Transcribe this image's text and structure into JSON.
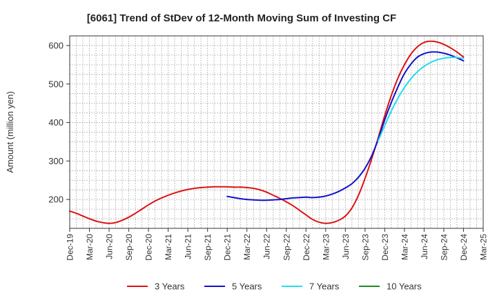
{
  "chart_data": {
    "type": "line",
    "title": "[6061]  Trend of StDev of 12-Month Moving Sum of Investing CF",
    "xlabel": "",
    "ylabel": "Amount (million yen)",
    "x_ticks": [
      "Dec-19",
      "Mar-20",
      "Jun-20",
      "Sep-20",
      "Dec-20",
      "Mar-21",
      "Jun-21",
      "Sep-21",
      "Dec-21",
      "Mar-22",
      "Jun-22",
      "Sep-22",
      "Dec-22",
      "Mar-23",
      "Jun-23",
      "Sep-23",
      "Dec-23",
      "Mar-24",
      "Jun-24",
      "Sep-24",
      "Dec-24",
      "Mar-25"
    ],
    "y_ticks": [
      200,
      300,
      400,
      500,
      600
    ],
    "ylim": [
      125,
      625
    ],
    "grid": true,
    "legend_position": "bottom",
    "series": [
      {
        "name": "3 Years",
        "color": "#dd1111",
        "points": [
          [
            "Dec-19",
            170
          ],
          [
            "Jan-20",
            164
          ],
          [
            "Feb-20",
            157
          ],
          [
            "Mar-20",
            150
          ],
          [
            "Apr-20",
            144
          ],
          [
            "May-20",
            140
          ],
          [
            "Jun-20",
            138
          ],
          [
            "Jul-20",
            140
          ],
          [
            "Aug-20",
            146
          ],
          [
            "Sep-20",
            154
          ],
          [
            "Oct-20",
            164
          ],
          [
            "Nov-20",
            175
          ],
          [
            "Dec-20",
            186
          ],
          [
            "Jan-21",
            196
          ],
          [
            "Feb-21",
            204
          ],
          [
            "Mar-21",
            211
          ],
          [
            "Apr-21",
            217
          ],
          [
            "May-21",
            222
          ],
          [
            "Jun-21",
            226
          ],
          [
            "Jul-21",
            229
          ],
          [
            "Aug-21",
            231
          ],
          [
            "Sep-21",
            232
          ],
          [
            "Oct-21",
            233
          ],
          [
            "Nov-21",
            233
          ],
          [
            "Dec-21",
            233
          ],
          [
            "Jan-22",
            232
          ],
          [
            "Feb-22",
            232
          ],
          [
            "Mar-22",
            231
          ],
          [
            "Apr-22",
            229
          ],
          [
            "May-22",
            225
          ],
          [
            "Jun-22",
            219
          ],
          [
            "Jul-22",
            211
          ],
          [
            "Aug-22",
            203
          ],
          [
            "Sep-22",
            194
          ],
          [
            "Oct-22",
            184
          ],
          [
            "Nov-22",
            172
          ],
          [
            "Dec-22",
            160
          ],
          [
            "Jan-23",
            148
          ],
          [
            "Feb-23",
            141
          ],
          [
            "Mar-23",
            138
          ],
          [
            "Apr-23",
            140
          ],
          [
            "May-23",
            146
          ],
          [
            "Jun-23",
            157
          ],
          [
            "Jul-23",
            178
          ],
          [
            "Aug-23",
            211
          ],
          [
            "Sep-23",
            255
          ],
          [
            "Oct-23",
            305
          ],
          [
            "Nov-23",
            360
          ],
          [
            "Dec-23",
            418
          ],
          [
            "Jan-24",
            470
          ],
          [
            "Feb-24",
            515
          ],
          [
            "Mar-24",
            550
          ],
          [
            "Apr-24",
            578
          ],
          [
            "May-24",
            597
          ],
          [
            "Jun-24",
            608
          ],
          [
            "Jul-24",
            611
          ],
          [
            "Aug-24",
            609
          ],
          [
            "Sep-24",
            603
          ],
          [
            "Oct-24",
            594
          ],
          [
            "Nov-24",
            583
          ],
          [
            "Dec-24",
            570
          ]
        ]
      },
      {
        "name": "5 Years",
        "color": "#1111cc",
        "points": [
          [
            "Dec-21",
            208
          ],
          [
            "Jan-22",
            205
          ],
          [
            "Feb-22",
            202
          ],
          [
            "Mar-22",
            200
          ],
          [
            "Apr-22",
            199
          ],
          [
            "May-22",
            198
          ],
          [
            "Jun-22",
            198
          ],
          [
            "Jul-22",
            199
          ],
          [
            "Aug-22",
            200
          ],
          [
            "Sep-22",
            202
          ],
          [
            "Oct-22",
            204
          ],
          [
            "Nov-22",
            205
          ],
          [
            "Dec-22",
            206
          ],
          [
            "Jan-23",
            205
          ],
          [
            "Feb-23",
            206
          ],
          [
            "Mar-23",
            209
          ],
          [
            "Apr-23",
            214
          ],
          [
            "May-23",
            221
          ],
          [
            "Jun-23",
            230
          ],
          [
            "Jul-23",
            241
          ],
          [
            "Aug-23",
            258
          ],
          [
            "Sep-23",
            281
          ],
          [
            "Oct-23",
            313
          ],
          [
            "Nov-23",
            356
          ],
          [
            "Dec-23",
            407
          ],
          [
            "Jan-24",
            452
          ],
          [
            "Feb-24",
            492
          ],
          [
            "Mar-24",
            527
          ],
          [
            "Apr-24",
            552
          ],
          [
            "May-24",
            570
          ],
          [
            "Jun-24",
            579
          ],
          [
            "Jul-24",
            583
          ],
          [
            "Aug-24",
            583
          ],
          [
            "Sep-24",
            580
          ],
          [
            "Oct-24",
            575
          ],
          [
            "Nov-24",
            568
          ],
          [
            "Dec-24",
            560
          ]
        ]
      },
      {
        "name": "7 Years",
        "color": "#22ddee",
        "points": [
          [
            "Nov-23",
            352
          ],
          [
            "Dec-23",
            392
          ],
          [
            "Jan-24",
            430
          ],
          [
            "Feb-24",
            463
          ],
          [
            "Mar-24",
            491
          ],
          [
            "Apr-24",
            514
          ],
          [
            "May-24",
            532
          ],
          [
            "Jun-24",
            546
          ],
          [
            "Jul-24",
            556
          ],
          [
            "Aug-24",
            563
          ],
          [
            "Sep-24",
            567
          ],
          [
            "Oct-24",
            569
          ],
          [
            "Nov-24",
            569
          ],
          [
            "Dec-24",
            566
          ]
        ]
      },
      {
        "name": "10 Years",
        "color": "#228822",
        "points": []
      }
    ]
  }
}
